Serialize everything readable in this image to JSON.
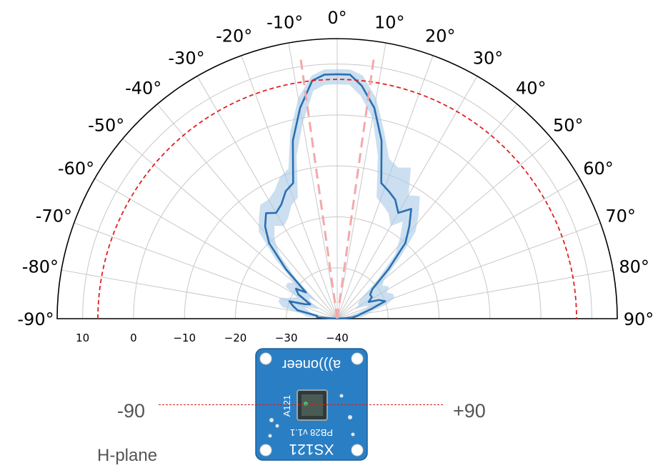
{
  "chart_data": {
    "type": "polar",
    "angle_ticks": [
      "-90°",
      "-80°",
      "-70°",
      "-60°",
      "-50°",
      "-40°",
      "-30°",
      "-20°",
      "-10°",
      "0°",
      "10°",
      "20°",
      "30°",
      "40°",
      "50°",
      "60°",
      "70°",
      "80°",
      "90°"
    ],
    "radial_ticks": [
      "10",
      "0",
      "−10",
      "−20",
      "−30",
      "−40"
    ],
    "rlim": [
      -40,
      15
    ],
    "angle_range_deg": [
      -90,
      90
    ],
    "grid": true,
    "series": [
      {
        "color": "#2b6fb0",
        "style": "solid",
        "angles": [
          -90,
          -86,
          -82,
          -78,
          -74,
          -70,
          -66,
          -62,
          -58,
          -54,
          -50,
          -46,
          -42,
          -38,
          -34,
          -30,
          -26,
          -22,
          -18,
          -14,
          -10,
          -6,
          -3,
          0,
          3,
          6,
          10,
          14,
          18,
          22,
          26,
          30,
          34,
          38,
          42,
          46,
          50,
          54,
          58,
          62,
          66,
          70,
          74,
          78,
          82,
          86,
          90
        ],
        "values": [
          -40,
          -36,
          -36,
          -32,
          -31,
          -30,
          -33,
          -34,
          -31,
          -30,
          -32,
          -26,
          -20,
          -17,
          -15,
          -16,
          -15,
          -13,
          -12,
          -4,
          2,
          7,
          8,
          8,
          8,
          6,
          2,
          -4,
          -12,
          -13,
          -14,
          -16,
          -14,
          -17,
          -20,
          -26,
          -31,
          -32,
          -32,
          -33,
          -31,
          -30,
          -33,
          -35,
          -36,
          -37,
          -40
        ]
      },
      {
        "color": "#a9c9e6",
        "style": "band",
        "angles": [
          -90,
          -86,
          -82,
          -78,
          -74,
          -70,
          -66,
          -62,
          -58,
          -54,
          -50,
          -46,
          -42,
          -38,
          -34,
          -30,
          -26,
          -22,
          -18,
          -14,
          -10,
          -6,
          -3,
          0,
          3,
          6,
          10,
          14,
          18,
          22,
          26,
          30,
          34,
          38,
          42,
          46,
          50,
          54,
          58,
          62,
          66,
          70,
          74,
          78,
          82,
          86,
          90
        ],
        "upper": [
          -38,
          -34,
          -33,
          -29,
          -28,
          -28,
          -30,
          -31,
          -28,
          -28,
          -29,
          -23,
          -17,
          -15,
          -13,
          -13,
          -12,
          -10,
          -9,
          -2,
          4,
          8,
          9,
          9,
          9,
          8,
          4,
          -2,
          -7,
          -8,
          -7,
          -12,
          -11,
          -14,
          -17,
          -23,
          -28,
          -29,
          -28,
          -29,
          -28,
          -28,
          -30,
          -33,
          -34,
          -35,
          -38
        ],
        "lower": [
          -40,
          -38,
          -38,
          -35,
          -34,
          -33,
          -35,
          -36,
          -34,
          -33,
          -35,
          -29,
          -23,
          -20,
          -18,
          -19,
          -18,
          -16,
          -15,
          -7,
          -1,
          5,
          6,
          6,
          6,
          4,
          0,
          -7,
          -15,
          -16,
          -17,
          -19,
          -17,
          -20,
          -23,
          -29,
          -34,
          -35,
          -35,
          -36,
          -34,
          -33,
          -36,
          -38,
          -38,
          -39,
          -40
        ]
      },
      {
        "color": "#e02020",
        "style": "dashed",
        "constant_value": 7
      },
      {
        "color": "#f2a9a9",
        "style": "dashed",
        "rays_deg": [
          -8,
          8
        ]
      }
    ]
  },
  "labels": {
    "left": "-90",
    "right": "+90",
    "plane": "H-plane"
  },
  "board": {
    "brand": "a)))oneer",
    "chip": "A121",
    "version": "PB28 v1.1",
    "model": "XS121",
    "color": "#2a7fc4"
  }
}
